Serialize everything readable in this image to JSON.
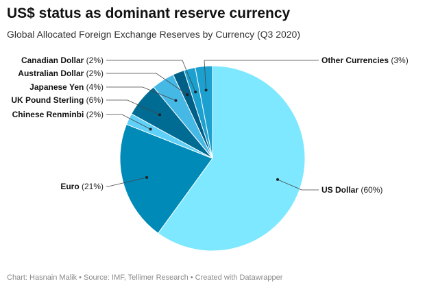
{
  "title": "US$ status as dominant reserve currency",
  "subtitle": "Global Allocated Foreign Exchange Reserves by Currency (Q3 2020)",
  "footer": "Chart: Hasnain Malik • Source: IMF, Tellimer Research • Created with Datawrapper",
  "chart_data": {
    "type": "pie",
    "categories": [
      "US Dollar",
      "Euro",
      "Chinese Renminbi",
      "UK Pound Sterling",
      "Japanese Yen",
      "Australian Dollar",
      "Canadian Dollar",
      "Other Currencies"
    ],
    "values": [
      60,
      21,
      2,
      6,
      4,
      2,
      2,
      3
    ],
    "labels": [
      "(60%)",
      "(21%)",
      "(2%)",
      "(6%)",
      "(4%)",
      "(2%)",
      "(2%)",
      "(3%)"
    ],
    "colors": [
      "#7de8ff",
      "#008ab8",
      "#5fd0f8",
      "#006c94",
      "#45b8e6",
      "#005f86",
      "#1ba0d0",
      "#1ba0d0"
    ]
  }
}
